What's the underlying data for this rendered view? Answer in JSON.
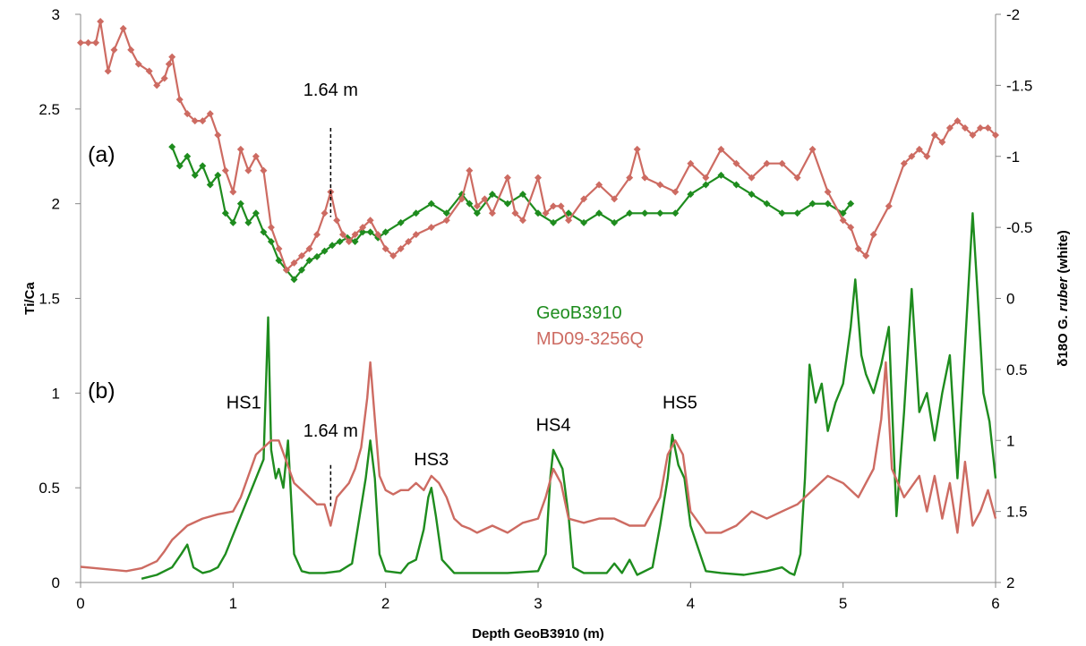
{
  "chart_data": {
    "type": "line",
    "xlabel": "Depth GeoB3910 (m)",
    "ylabel_left": "Ti/Ca",
    "ylabel_right_parts": [
      "δ18O G. ",
      "ruber",
      " (white)"
    ],
    "xlim": [
      0,
      6
    ],
    "ylim_left": [
      0,
      3
    ],
    "ylim_right": [
      -2,
      2
    ],
    "right_axis_inverted": true,
    "x_ticks": [
      "0",
      "1",
      "2",
      "3",
      "4",
      "5",
      "6"
    ],
    "y_left_ticks": [
      "0",
      "0.5",
      "1",
      "1.5",
      "2",
      "2.5",
      "3"
    ],
    "y_right_ticks": [
      "-2",
      "-1.5",
      "-1",
      "-0.5",
      "0",
      "0.5",
      "1",
      "1.5",
      "2"
    ],
    "legend": [
      {
        "label": "GeoB3910",
        "color": "#1e8c1e"
      },
      {
        "label": "MD09-3256Q",
        "color": "#cd6b62"
      }
    ],
    "panel_labels": [
      "(a)",
      "(b)"
    ],
    "annotations": [
      {
        "text": "1.64 m",
        "x": 1.64,
        "y": 2.57,
        "marker_y": [
          2.4,
          1.93
        ]
      },
      {
        "text": "1.64 m",
        "x": 1.64,
        "y": 0.77,
        "marker_y": [
          0.62,
          0.4
        ]
      },
      {
        "text": "HS1",
        "x": 1.07,
        "y": 0.92
      },
      {
        "text": "HS3",
        "x": 2.3,
        "y": 0.62
      },
      {
        "text": "HS4",
        "x": 3.1,
        "y": 0.8
      },
      {
        "text": "HS5",
        "x": 3.93,
        "y": 0.92
      }
    ],
    "series": [
      {
        "name": "GeoB3910",
        "panel": "b",
        "axis": "left",
        "style": "line",
        "color": "#1e8c1e",
        "x": [
          0.4,
          0.5,
          0.6,
          0.66,
          0.7,
          0.74,
          0.8,
          0.85,
          0.9,
          0.95,
          1.0,
          1.05,
          1.1,
          1.15,
          1.2,
          1.23,
          1.25,
          1.28,
          1.3,
          1.33,
          1.36,
          1.38,
          1.4,
          1.45,
          1.5,
          1.6,
          1.7,
          1.78,
          1.83,
          1.87,
          1.9,
          1.93,
          1.96,
          2.0,
          2.1,
          2.15,
          2.2,
          2.25,
          2.28,
          2.3,
          2.33,
          2.37,
          2.45,
          2.6,
          2.8,
          3.0,
          3.05,
          3.08,
          3.1,
          3.13,
          3.16,
          3.2,
          3.23,
          3.3,
          3.45,
          3.5,
          3.55,
          3.6,
          3.65,
          3.75,
          3.8,
          3.85,
          3.88,
          3.92,
          3.96,
          4.0,
          4.1,
          4.2,
          4.35,
          4.5,
          4.6,
          4.65,
          4.68,
          4.72,
          4.75,
          4.78,
          4.82,
          4.86,
          4.9,
          4.95,
          5.0,
          5.05,
          5.08,
          5.12,
          5.15,
          5.2,
          5.25,
          5.3,
          5.35,
          5.4,
          5.45,
          5.5,
          5.55,
          5.6,
          5.65,
          5.7,
          5.75,
          5.8,
          5.85,
          5.88,
          5.92,
          5.96,
          6.0
        ],
        "y": [
          0.02,
          0.04,
          0.08,
          0.15,
          0.2,
          0.08,
          0.05,
          0.06,
          0.08,
          0.15,
          0.25,
          0.35,
          0.45,
          0.55,
          0.65,
          1.4,
          0.7,
          0.55,
          0.6,
          0.5,
          0.75,
          0.45,
          0.15,
          0.06,
          0.05,
          0.05,
          0.06,
          0.1,
          0.35,
          0.55,
          0.75,
          0.55,
          0.15,
          0.06,
          0.05,
          0.1,
          0.12,
          0.28,
          0.45,
          0.5,
          0.35,
          0.12,
          0.05,
          0.05,
          0.05,
          0.06,
          0.15,
          0.55,
          0.7,
          0.65,
          0.6,
          0.35,
          0.08,
          0.05,
          0.05,
          0.1,
          0.05,
          0.12,
          0.04,
          0.08,
          0.3,
          0.55,
          0.78,
          0.62,
          0.55,
          0.3,
          0.06,
          0.05,
          0.04,
          0.06,
          0.08,
          0.05,
          0.04,
          0.15,
          0.55,
          1.15,
          0.95,
          1.05,
          0.8,
          0.95,
          1.05,
          1.35,
          1.6,
          1.2,
          1.1,
          1.0,
          1.15,
          1.35,
          0.35,
          0.9,
          1.55,
          0.9,
          1.0,
          0.75,
          1.0,
          1.2,
          0.55,
          1.25,
          1.95,
          1.55,
          1.0,
          0.85,
          0.55
        ]
      },
      {
        "name": "MD09-3256Q",
        "panel": "b",
        "axis": "right",
        "style": "line",
        "color": "#cd6b62",
        "x": [
          0.0,
          0.1,
          0.2,
          0.3,
          0.4,
          0.5,
          0.55,
          0.6,
          0.7,
          0.8,
          0.9,
          1.0,
          1.05,
          1.1,
          1.15,
          1.2,
          1.25,
          1.3,
          1.35,
          1.4,
          1.45,
          1.5,
          1.55,
          1.6,
          1.64,
          1.68,
          1.72,
          1.76,
          1.8,
          1.84,
          1.88,
          1.9,
          1.93,
          1.96,
          2.0,
          2.05,
          2.1,
          2.15,
          2.2,
          2.25,
          2.3,
          2.35,
          2.4,
          2.45,
          2.5,
          2.55,
          2.6,
          2.7,
          2.8,
          2.9,
          3.0,
          3.05,
          3.1,
          3.15,
          3.2,
          3.3,
          3.4,
          3.5,
          3.6,
          3.7,
          3.8,
          3.85,
          3.9,
          3.95,
          4.0,
          4.1,
          4.2,
          4.3,
          4.4,
          4.5,
          4.6,
          4.7,
          4.8,
          4.9,
          5.0,
          5.1,
          5.2,
          5.25,
          5.28,
          5.32,
          5.4,
          5.5,
          5.55,
          5.6,
          5.65,
          5.7,
          5.75,
          5.8,
          5.85,
          5.9,
          5.95,
          6.0
        ],
        "y": [
          1.89,
          1.9,
          1.91,
          1.92,
          1.9,
          1.85,
          1.78,
          1.7,
          1.6,
          1.55,
          1.52,
          1.5,
          1.4,
          1.25,
          1.1,
          1.05,
          1.0,
          1.0,
          1.15,
          1.3,
          1.35,
          1.4,
          1.45,
          1.45,
          1.6,
          1.4,
          1.35,
          1.3,
          1.2,
          1.05,
          0.7,
          0.45,
          0.85,
          1.25,
          1.35,
          1.38,
          1.35,
          1.35,
          1.3,
          1.35,
          1.25,
          1.3,
          1.4,
          1.55,
          1.6,
          1.62,
          1.65,
          1.6,
          1.65,
          1.58,
          1.55,
          1.4,
          1.2,
          1.3,
          1.55,
          1.58,
          1.55,
          1.55,
          1.6,
          1.6,
          1.4,
          1.1,
          1.0,
          1.1,
          1.5,
          1.65,
          1.65,
          1.6,
          1.5,
          1.55,
          1.5,
          1.45,
          1.35,
          1.25,
          1.3,
          1.4,
          1.2,
          0.85,
          0.45,
          1.2,
          1.4,
          1.25,
          1.5,
          1.25,
          1.55,
          1.3,
          1.65,
          1.15,
          1.6,
          1.5,
          1.35,
          1.55
        ]
      },
      {
        "name": "GeoB3910",
        "panel": "a",
        "axis": "left",
        "style": "line+markers",
        "color": "#1e8c1e",
        "x": [
          0.6,
          0.65,
          0.7,
          0.75,
          0.8,
          0.85,
          0.9,
          0.95,
          1.0,
          1.05,
          1.1,
          1.15,
          1.2,
          1.25,
          1.3,
          1.35,
          1.4,
          1.45,
          1.5,
          1.55,
          1.6,
          1.65,
          1.7,
          1.75,
          1.8,
          1.85,
          1.9,
          1.95,
          2.0,
          2.1,
          2.2,
          2.3,
          2.4,
          2.5,
          2.55,
          2.6,
          2.7,
          2.8,
          2.9,
          3.0,
          3.1,
          3.2,
          3.3,
          3.4,
          3.5,
          3.6,
          3.7,
          3.8,
          3.9,
          4.0,
          4.1,
          4.2,
          4.3,
          4.4,
          4.5,
          4.6,
          4.7,
          4.8,
          4.9,
          5.0,
          5.05
        ],
        "y": [
          2.3,
          2.2,
          2.25,
          2.15,
          2.2,
          2.1,
          2.15,
          1.95,
          1.9,
          2.0,
          1.9,
          1.95,
          1.85,
          1.8,
          1.7,
          1.65,
          1.6,
          1.65,
          1.7,
          1.72,
          1.75,
          1.78,
          1.8,
          1.82,
          1.8,
          1.85,
          1.85,
          1.82,
          1.85,
          1.9,
          1.95,
          2.0,
          1.95,
          2.05,
          2.0,
          1.95,
          2.05,
          2.0,
          2.05,
          1.95,
          1.9,
          1.95,
          1.9,
          1.95,
          1.9,
          1.95,
          1.95,
          1.95,
          1.95,
          2.05,
          2.1,
          2.15,
          2.1,
          2.05,
          2.0,
          1.95,
          1.95,
          2.0,
          2.0,
          1.95,
          2.0
        ]
      },
      {
        "name": "MD09-3256Q",
        "panel": "a",
        "axis": "right",
        "style": "line+markers",
        "color": "#cd6b62",
        "x": [
          0.0,
          0.05,
          0.1,
          0.13,
          0.18,
          0.22,
          0.28,
          0.33,
          0.38,
          0.45,
          0.5,
          0.55,
          0.58,
          0.6,
          0.65,
          0.7,
          0.75,
          0.8,
          0.85,
          0.9,
          0.95,
          1.0,
          1.05,
          1.1,
          1.15,
          1.2,
          1.25,
          1.3,
          1.35,
          1.4,
          1.45,
          1.5,
          1.55,
          1.6,
          1.64,
          1.68,
          1.72,
          1.76,
          1.8,
          1.85,
          1.9,
          1.95,
          2.0,
          2.05,
          2.1,
          2.15,
          2.2,
          2.3,
          2.4,
          2.5,
          2.55,
          2.6,
          2.65,
          2.7,
          2.8,
          2.85,
          2.9,
          3.0,
          3.05,
          3.1,
          3.15,
          3.2,
          3.3,
          3.4,
          3.5,
          3.6,
          3.65,
          3.7,
          3.8,
          3.9,
          4.0,
          4.1,
          4.2,
          4.3,
          4.4,
          4.5,
          4.6,
          4.7,
          4.8,
          4.9,
          5.0,
          5.05,
          5.1,
          5.15,
          5.2,
          5.3,
          5.4,
          5.45,
          5.5,
          5.55,
          5.6,
          5.65,
          5.7,
          5.75,
          5.8,
          5.85,
          5.9,
          5.95,
          6.0
        ],
        "y": [
          -1.8,
          -1.8,
          -1.8,
          -1.95,
          -1.6,
          -1.75,
          -1.9,
          -1.75,
          -1.65,
          -1.6,
          -1.5,
          -1.55,
          -1.65,
          -1.7,
          -1.4,
          -1.3,
          -1.25,
          -1.25,
          -1.3,
          -1.15,
          -0.9,
          -0.75,
          -1.05,
          -0.9,
          -1.0,
          -0.9,
          -0.5,
          -0.35,
          -0.2,
          -0.25,
          -0.3,
          -0.35,
          -0.45,
          -0.6,
          -0.75,
          -0.55,
          -0.45,
          -0.4,
          -0.45,
          -0.5,
          -0.55,
          -0.45,
          -0.35,
          -0.3,
          -0.35,
          -0.4,
          -0.45,
          -0.5,
          -0.55,
          -0.7,
          -0.9,
          -0.65,
          -0.7,
          -0.6,
          -0.85,
          -0.6,
          -0.55,
          -0.85,
          -0.6,
          -0.65,
          -0.65,
          -0.55,
          -0.7,
          -0.8,
          -0.7,
          -0.85,
          -1.05,
          -0.85,
          -0.8,
          -0.75,
          -0.95,
          -0.85,
          -1.05,
          -0.95,
          -0.85,
          -0.95,
          -0.95,
          -0.85,
          -1.05,
          -0.75,
          -0.55,
          -0.5,
          -0.35,
          -0.3,
          -0.45,
          -0.65,
          -0.95,
          -1.0,
          -1.05,
          -1.0,
          -1.15,
          -1.1,
          -1.2,
          -1.25,
          -1.2,
          -1.15,
          -1.2,
          -1.2,
          -1.15
        ]
      }
    ]
  }
}
